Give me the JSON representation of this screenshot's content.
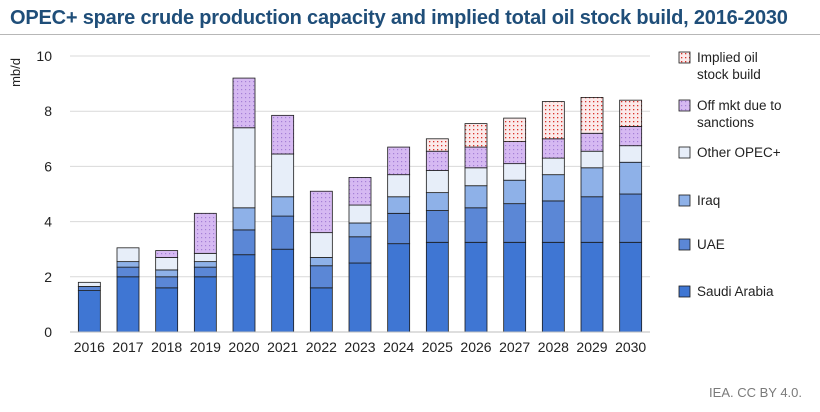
{
  "title": "OPEC+ spare crude production capacity and implied total oil stock build, 2016-2030",
  "source": "IEA. CC BY 4.0.",
  "colors": {
    "saudi": "#3f76d3",
    "uae": "#5b87d6",
    "iraq": "#8eb1e8",
    "other_opec": "#e7eef9",
    "sanctions": "#d6b9f2",
    "stock_build": "#fbeaea",
    "stock_dots": "#d9312b"
  },
  "chart_data": {
    "type": "bar",
    "stacked": true,
    "ylabel": "mb/d",
    "ylim": [
      0,
      10
    ],
    "yticks": [
      "0",
      "2",
      "4",
      "6",
      "8",
      "10"
    ],
    "legend_position": "right",
    "categories": [
      "2016",
      "2017",
      "2018",
      "2019",
      "2020",
      "2021",
      "2022",
      "2023",
      "2024",
      "2025",
      "2026",
      "2027",
      "2028",
      "2029",
      "2030"
    ],
    "series": [
      {
        "name": "Saudi Arabia",
        "key": "saudi",
        "values": [
          1.5,
          2.0,
          1.6,
          2.0,
          2.8,
          3.0,
          1.6,
          2.5,
          3.2,
          3.25,
          3.25,
          3.25,
          3.25,
          3.25,
          3.25
        ]
      },
      {
        "name": "UAE",
        "key": "uae",
        "values": [
          0.15,
          0.35,
          0.4,
          0.35,
          0.9,
          1.2,
          0.8,
          0.95,
          1.1,
          1.15,
          1.25,
          1.4,
          1.5,
          1.65,
          1.75
        ]
      },
      {
        "name": "Iraq",
        "key": "iraq",
        "values": [
          0.0,
          0.2,
          0.25,
          0.2,
          0.8,
          0.7,
          0.3,
          0.5,
          0.6,
          0.65,
          0.8,
          0.85,
          0.95,
          1.05,
          1.15
        ]
      },
      {
        "name": "Other OPEC+",
        "key": "other_opec",
        "values": [
          0.15,
          0.5,
          0.45,
          0.3,
          2.9,
          1.55,
          0.9,
          0.65,
          0.8,
          0.8,
          0.65,
          0.6,
          0.6,
          0.6,
          0.6
        ]
      },
      {
        "name": "Off mkt due to sanctions",
        "key": "sanctions",
        "values": [
          0.0,
          0.0,
          0.25,
          1.45,
          1.8,
          1.4,
          1.5,
          1.0,
          1.0,
          0.7,
          0.75,
          0.8,
          0.7,
          0.65,
          0.7
        ]
      },
      {
        "name": "Implied oil stock build",
        "key": "stock_build",
        "values": [
          0.0,
          0.0,
          0.0,
          0.0,
          0.0,
          0.0,
          0.0,
          0.0,
          0.0,
          0.45,
          0.85,
          0.85,
          1.35,
          1.3,
          0.95
        ]
      }
    ],
    "legend_lines": [
      [
        "Implied oil",
        "stock build"
      ],
      [
        "Off mkt due to",
        "sanctions"
      ],
      [
        "Other OPEC+"
      ],
      [
        "Iraq"
      ],
      [
        "UAE"
      ],
      [
        "Saudi Arabia"
      ]
    ]
  }
}
